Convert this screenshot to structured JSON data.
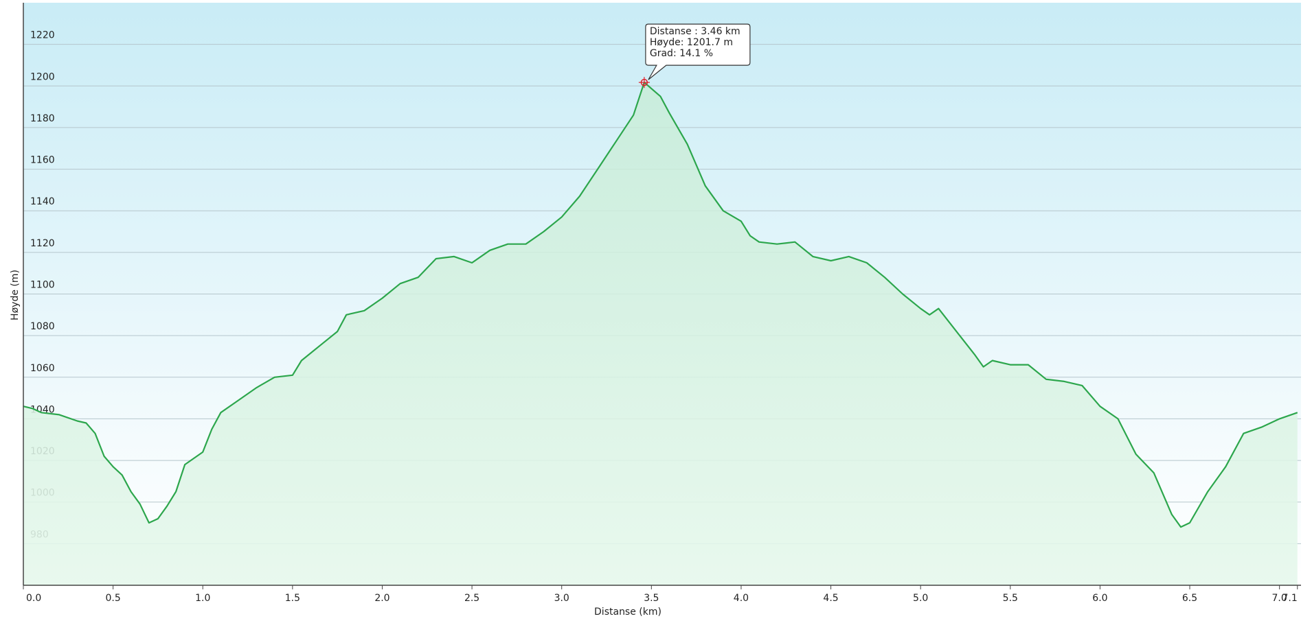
{
  "chart_data": {
    "type": "area",
    "x_label": "Distanse  (km)",
    "y_label": "Høyde (m)",
    "color": "#2ca64c",
    "x": [
      0.0,
      0.05,
      0.1,
      0.2,
      0.3,
      0.35,
      0.4,
      0.45,
      0.5,
      0.55,
      0.6,
      0.65,
      0.7,
      0.75,
      0.8,
      0.85,
      0.9,
      1.0,
      1.05,
      1.1,
      1.2,
      1.3,
      1.4,
      1.5,
      1.55,
      1.65,
      1.75,
      1.8,
      1.9,
      2.0,
      2.1,
      2.2,
      2.3,
      2.4,
      2.5,
      2.6,
      2.7,
      2.8,
      2.9,
      3.0,
      3.1,
      3.2,
      3.3,
      3.4,
      3.46,
      3.55,
      3.6,
      3.7,
      3.8,
      3.9,
      4.0,
      4.05,
      4.1,
      4.2,
      4.3,
      4.4,
      4.5,
      4.6,
      4.7,
      4.8,
      4.9,
      5.0,
      5.05,
      5.1,
      5.2,
      5.3,
      5.35,
      5.4,
      5.5,
      5.6,
      5.7,
      5.8,
      5.9,
      6.0,
      6.1,
      6.2,
      6.3,
      6.4,
      6.45,
      6.5,
      6.6,
      6.7,
      6.8,
      6.9,
      7.0,
      7.1
    ],
    "values": [
      1046,
      1045,
      1043,
      1042,
      1039,
      1038,
      1033,
      1022,
      1017,
      1013,
      1005,
      999,
      990,
      992,
      998,
      1005,
      1018,
      1024,
      1035,
      1043,
      1049,
      1055,
      1060,
      1061,
      1068,
      1075,
      1082,
      1090,
      1092,
      1098,
      1105,
      1108,
      1117,
      1118,
      1115,
      1121,
      1124,
      1124,
      1130,
      1137,
      1147,
      1160,
      1173,
      1186,
      1201.7,
      1195,
      1187,
      1172,
      1152,
      1140,
      1135,
      1128,
      1125,
      1124,
      1125,
      1118,
      1116,
      1118,
      1115,
      1108,
      1100,
      1093,
      1090,
      1093,
      1082,
      1071,
      1065,
      1068,
      1066,
      1066,
      1059,
      1058,
      1056,
      1046,
      1040,
      1023,
      1014,
      994,
      988,
      990,
      1005,
      1017,
      1033,
      1036,
      1040,
      1043
    ],
    "xlim": [
      0,
      7.12
    ],
    "ylim": [
      960,
      1240
    ],
    "xticks": [
      {
        "value": 0,
        "label": "0.0"
      },
      0.5,
      {
        "value": 1,
        "label": "1.0"
      },
      1.5,
      {
        "value": 2,
        "label": "2.0"
      },
      2.5,
      {
        "value": 3,
        "label": "3.0"
      },
      3.5,
      {
        "value": 4,
        "label": "4.0"
      },
      4.5,
      {
        "value": 5,
        "label": "5.0"
      },
      5.5,
      {
        "value": 6,
        "label": "6.0"
      },
      6.5,
      {
        "value": 7,
        "label": "7.0"
      },
      7.1
    ],
    "yticks": [
      980,
      1000,
      1020,
      1040,
      1060,
      1080,
      1100,
      1120,
      1140,
      1160,
      1180,
      1200,
      1220
    ],
    "grid": true,
    "marker": {
      "x": 3.46,
      "y": 1201.7
    },
    "tooltip": [
      "Distanse : 3.46 km",
      "Høyde: 1201.7 m",
      "Grad: 14.1 %"
    ]
  }
}
